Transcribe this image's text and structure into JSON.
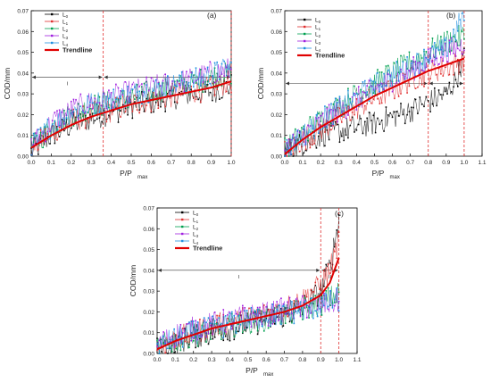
{
  "chart_data": [
    {
      "panel": "(a)",
      "type": "scatter",
      "xlabel": "P/P",
      "xlabel_sub": "max",
      "ylabel": "COD/mm",
      "xlim": [
        0,
        1.0
      ],
      "ylim": [
        0,
        0.07
      ],
      "xticks": [
        "0.0",
        "0.1",
        "0.2",
        "0.3",
        "0.4",
        "0.5",
        "0.6",
        "0.7",
        "0.8",
        "0.9",
        "1.0"
      ],
      "yticks": [
        "0.00",
        "0.01",
        "0.02",
        "0.03",
        "0.04",
        "0.05",
        "0.06",
        "0.07"
      ],
      "stage_lines": [
        0.36,
        1.0
      ],
      "stage_labels": [
        "I",
        "II"
      ],
      "legend_position": "top-left",
      "series": [
        {
          "name": "L0",
          "color": "#000000",
          "x": [
            0,
            0.1,
            0.2,
            0.3,
            0.4,
            0.5,
            0.6,
            0.7,
            0.8,
            0.9,
            1.0
          ],
          "y": [
            0.002,
            0.01,
            0.015,
            0.018,
            0.021,
            0.024,
            0.026,
            0.028,
            0.03,
            0.031,
            0.034
          ]
        },
        {
          "name": "L1",
          "color": "#e03030",
          "x": [
            0,
            0.1,
            0.2,
            0.3,
            0.4,
            0.5,
            0.6,
            0.7,
            0.8,
            0.9,
            1.0
          ],
          "y": [
            0.003,
            0.012,
            0.017,
            0.02,
            0.022,
            0.025,
            0.027,
            0.029,
            0.031,
            0.033,
            0.036
          ]
        },
        {
          "name": "L2",
          "color": "#00a050",
          "x": [
            0,
            0.1,
            0.2,
            0.3,
            0.4,
            0.5,
            0.6,
            0.7,
            0.8,
            0.9,
            1.0
          ],
          "y": [
            0.004,
            0.014,
            0.02,
            0.024,
            0.026,
            0.028,
            0.031,
            0.033,
            0.035,
            0.038,
            0.04
          ]
        },
        {
          "name": "L3",
          "color": "#a020e0",
          "x": [
            0,
            0.1,
            0.2,
            0.3,
            0.4,
            0.5,
            0.6,
            0.7,
            0.8,
            0.9,
            1.0
          ],
          "y": [
            0.005,
            0.016,
            0.022,
            0.026,
            0.028,
            0.031,
            0.033,
            0.035,
            0.037,
            0.04,
            0.042
          ]
        },
        {
          "name": "L4",
          "color": "#2090e0",
          "x": [
            0,
            0.1,
            0.2,
            0.3,
            0.4,
            0.5,
            0.6,
            0.7,
            0.8,
            0.9,
            1.0
          ],
          "y": [
            0.004,
            0.015,
            0.021,
            0.025,
            0.027,
            0.03,
            0.032,
            0.034,
            0.036,
            0.039,
            0.043
          ]
        },
        {
          "name": "Trendline",
          "color": "#e00000",
          "x": [
            0,
            0.1,
            0.2,
            0.3,
            0.4,
            0.5,
            0.6,
            0.7,
            0.8,
            0.9,
            1.0
          ],
          "y": [
            0.004,
            0.01,
            0.015,
            0.019,
            0.022,
            0.025,
            0.027,
            0.029,
            0.031,
            0.033,
            0.036
          ]
        }
      ]
    },
    {
      "panel": "(b)",
      "type": "scatter",
      "xlabel": "P/P",
      "xlabel_sub": "max",
      "ylabel": "COD/mm",
      "xlim": [
        0,
        1.1
      ],
      "ylim": [
        0,
        0.07
      ],
      "xticks": [
        "0.0",
        "0.1",
        "0.2",
        "0.3",
        "0.4",
        "0.5",
        "0.6",
        "0.7",
        "0.8",
        "0.9",
        "1.0",
        "1.1"
      ],
      "yticks": [
        "0.00",
        "0.01",
        "0.02",
        "0.03",
        "0.04",
        "0.05",
        "0.06",
        "0.07"
      ],
      "stage_lines": [
        0.8,
        1.0
      ],
      "stage_labels": [
        "I",
        "II"
      ],
      "legend_position": "top-left",
      "series": [
        {
          "name": "L0",
          "color": "#000000",
          "x": [
            0,
            0.1,
            0.2,
            0.3,
            0.4,
            0.5,
            0.6,
            0.7,
            0.8,
            0.9,
            0.95,
            1.0
          ],
          "y": [
            0.002,
            0.006,
            0.01,
            0.012,
            0.014,
            0.016,
            0.019,
            0.022,
            0.026,
            0.03,
            0.036,
            0.048
          ]
        },
        {
          "name": "L1",
          "color": "#e03030",
          "x": [
            0,
            0.1,
            0.2,
            0.3,
            0.4,
            0.5,
            0.6,
            0.7,
            0.8,
            0.9,
            1.0
          ],
          "y": [
            0.002,
            0.008,
            0.013,
            0.018,
            0.023,
            0.028,
            0.032,
            0.037,
            0.04,
            0.043,
            0.046
          ]
        },
        {
          "name": "L2",
          "color": "#00a050",
          "x": [
            0,
            0.1,
            0.2,
            0.3,
            0.4,
            0.5,
            0.6,
            0.7,
            0.8,
            0.9,
            1.0
          ],
          "y": [
            0.003,
            0.011,
            0.018,
            0.024,
            0.03,
            0.035,
            0.04,
            0.045,
            0.05,
            0.055,
            0.058
          ]
        },
        {
          "name": "L3",
          "color": "#a020e0",
          "x": [
            0,
            0.1,
            0.2,
            0.3,
            0.4,
            0.5,
            0.6,
            0.7,
            0.8,
            0.9,
            1.0
          ],
          "y": [
            0.003,
            0.01,
            0.016,
            0.022,
            0.027,
            0.032,
            0.037,
            0.041,
            0.046,
            0.05,
            0.054
          ]
        },
        {
          "name": "L4",
          "color": "#2090e0",
          "x": [
            0,
            0.1,
            0.2,
            0.3,
            0.4,
            0.5,
            0.6,
            0.7,
            0.8,
            0.9,
            1.0
          ],
          "y": [
            0.003,
            0.01,
            0.017,
            0.023,
            0.028,
            0.034,
            0.039,
            0.043,
            0.048,
            0.052,
            0.068
          ]
        },
        {
          "name": "Trendline",
          "color": "#e00000",
          "x": [
            0,
            0.1,
            0.2,
            0.3,
            0.4,
            0.5,
            0.6,
            0.7,
            0.8,
            0.9,
            1.0
          ],
          "y": [
            0.001,
            0.008,
            0.014,
            0.019,
            0.024,
            0.029,
            0.033,
            0.037,
            0.041,
            0.044,
            0.047
          ]
        }
      ]
    },
    {
      "panel": "(c)",
      "type": "scatter",
      "xlabel": "P/P",
      "xlabel_sub": "max",
      "ylabel": "COD/mm",
      "xlim": [
        0,
        1.1
      ],
      "ylim": [
        0,
        0.07
      ],
      "xticks": [
        "0.0",
        "0.1",
        "0.2",
        "0.3",
        "0.4",
        "0.5",
        "0.6",
        "0.7",
        "0.8",
        "0.9",
        "1.0",
        "1.1"
      ],
      "yticks": [
        "0.00",
        "0.01",
        "0.02",
        "0.03",
        "0.04",
        "0.05",
        "0.06",
        "0.07"
      ],
      "stage_lines": [
        0.9,
        1.0
      ],
      "stage_labels": [
        "I",
        "II"
      ],
      "legend_position": "top-left",
      "series": [
        {
          "name": "L0",
          "color": "#000000",
          "x": [
            0,
            0.1,
            0.2,
            0.3,
            0.4,
            0.5,
            0.6,
            0.7,
            0.8,
            0.9,
            0.95,
            1.0
          ],
          "y": [
            0.002,
            0.005,
            0.008,
            0.01,
            0.012,
            0.014,
            0.016,
            0.018,
            0.022,
            0.03,
            0.042,
            0.064
          ]
        },
        {
          "name": "L1",
          "color": "#e03030",
          "x": [
            0,
            0.1,
            0.2,
            0.3,
            0.4,
            0.5,
            0.6,
            0.7,
            0.8,
            0.9,
            0.95,
            1.0
          ],
          "y": [
            0.003,
            0.007,
            0.01,
            0.013,
            0.015,
            0.017,
            0.019,
            0.022,
            0.026,
            0.033,
            0.04,
            0.055
          ]
        },
        {
          "name": "L2",
          "color": "#00a050",
          "x": [
            0,
            0.1,
            0.2,
            0.3,
            0.4,
            0.5,
            0.6,
            0.7,
            0.8,
            0.9,
            1.0
          ],
          "y": [
            0.003,
            0.006,
            0.009,
            0.011,
            0.013,
            0.015,
            0.017,
            0.019,
            0.021,
            0.024,
            0.029
          ]
        },
        {
          "name": "L3",
          "color": "#a020e0",
          "x": [
            0,
            0.1,
            0.2,
            0.3,
            0.4,
            0.5,
            0.6,
            0.7,
            0.8,
            0.9,
            1.0
          ],
          "y": [
            0.004,
            0.009,
            0.012,
            0.014,
            0.016,
            0.018,
            0.019,
            0.021,
            0.022,
            0.023,
            0.025
          ]
        },
        {
          "name": "L4",
          "color": "#2090e0",
          "x": [
            0,
            0.1,
            0.2,
            0.3,
            0.4,
            0.5,
            0.6,
            0.7,
            0.8,
            0.9,
            1.0
          ],
          "y": [
            0.003,
            0.007,
            0.01,
            0.012,
            0.014,
            0.016,
            0.018,
            0.019,
            0.021,
            0.023,
            0.026
          ]
        },
        {
          "name": "Trendline",
          "color": "#e00000",
          "x": [
            0,
            0.1,
            0.2,
            0.3,
            0.4,
            0.5,
            0.6,
            0.7,
            0.8,
            0.9,
            0.95,
            1.0
          ],
          "y": [
            0.002,
            0.006,
            0.009,
            0.012,
            0.014,
            0.016,
            0.018,
            0.02,
            0.023,
            0.028,
            0.034,
            0.046
          ]
        }
      ]
    }
  ]
}
